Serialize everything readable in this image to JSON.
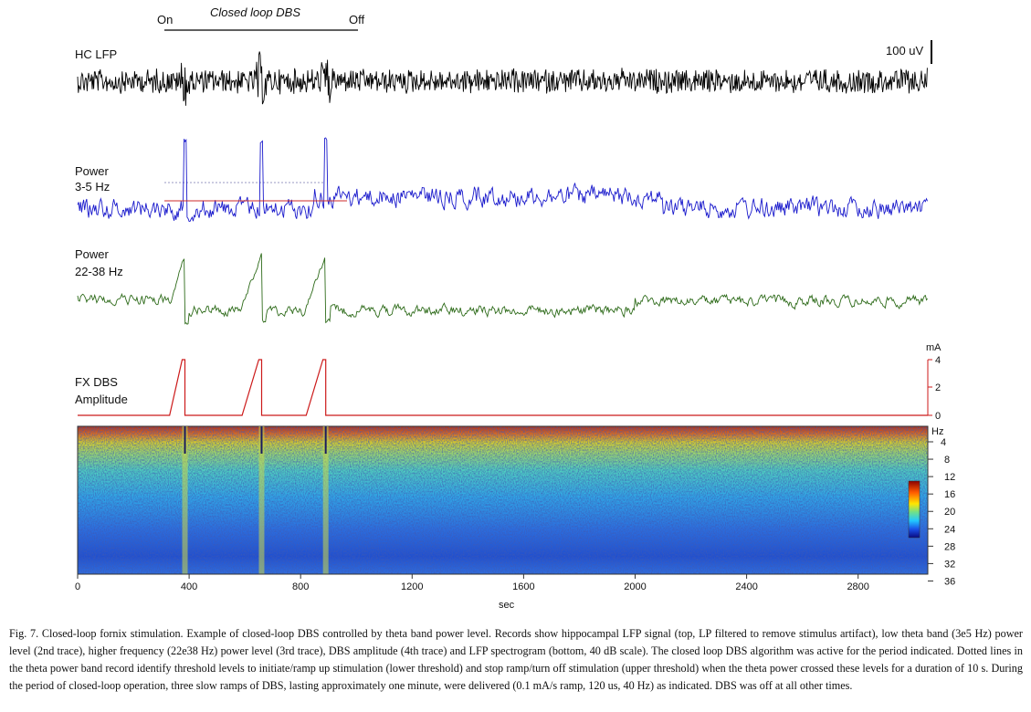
{
  "figure": {
    "annotation": {
      "on": "On",
      "label": "Closed loop DBS",
      "off": "Off"
    },
    "scale_bar": "100 uV",
    "traces": [
      {
        "label_lines": [
          "HC LFP"
        ],
        "color": "#000000"
      },
      {
        "label_lines": [
          "Power",
          "3-5 Hz"
        ],
        "color": "#1a1acc"
      },
      {
        "label_lines": [
          "Power",
          "22-38 Hz"
        ],
        "color": "#2e6b1a"
      },
      {
        "label_lines": [
          "FX DBS",
          "Amplitude"
        ],
        "color": "#cc1a1a"
      }
    ],
    "amplitude_axis": {
      "unit": "mA",
      "ticks": [
        "4",
        "2",
        "0"
      ]
    },
    "spectrogram_axis": {
      "unit": "Hz",
      "ticks": [
        "4",
        "8",
        "12",
        "16",
        "20",
        "24",
        "28",
        "32",
        "36"
      ]
    },
    "time_axis": {
      "label": "sec",
      "ticks": [
        "0",
        "400",
        "800",
        "1200",
        "1600",
        "2000",
        "2400",
        "2800"
      ]
    }
  },
  "chart_data": {
    "type": "line",
    "xlabel": "sec",
    "xlim": [
      0,
      3050
    ],
    "x_ticks": [
      0,
      400,
      800,
      1200,
      1600,
      2000,
      2400,
      2800
    ],
    "dbs_ramps": [
      {
        "start": 330,
        "peak": 375,
        "end": 385
      },
      {
        "start": 590,
        "peak": 650,
        "end": 660
      },
      {
        "start": 820,
        "peak": 880,
        "end": 890
      }
    ],
    "closed_loop_period": {
      "on": 300,
      "off": 1000
    },
    "amplitude_ylim": [
      0,
      4
    ],
    "spectrogram_ylim": [
      4,
      38
    ]
  },
  "caption": "Fig. 7. Closed-loop fornix stimulation. Example of closed-loop DBS controlled by theta band power level. Records show hippocampal LFP signal (top, LP filtered to remove stimulus artifact), low theta band (3e5 Hz) power level (2nd trace), higher frequency (22e38 Hz) power level (3rd trace), DBS amplitude (4th trace) and LFP spectrogram (bottom, 40 dB scale). The closed loop DBS algorithm was active for the period indicated. Dotted lines in the theta power band record identify threshold levels to initiate/ramp up stimulation (lower threshold) and stop ramp/turn off stimulation (upper threshold) when the theta power crossed these levels for a duration of 10 s. During the period of closed-loop operation, three slow ramps of DBS, lasting approximately one minute, were delivered (0.1 mA/s ramp, 120 us, 40 Hz) as indicated. DBS was off at all other times."
}
